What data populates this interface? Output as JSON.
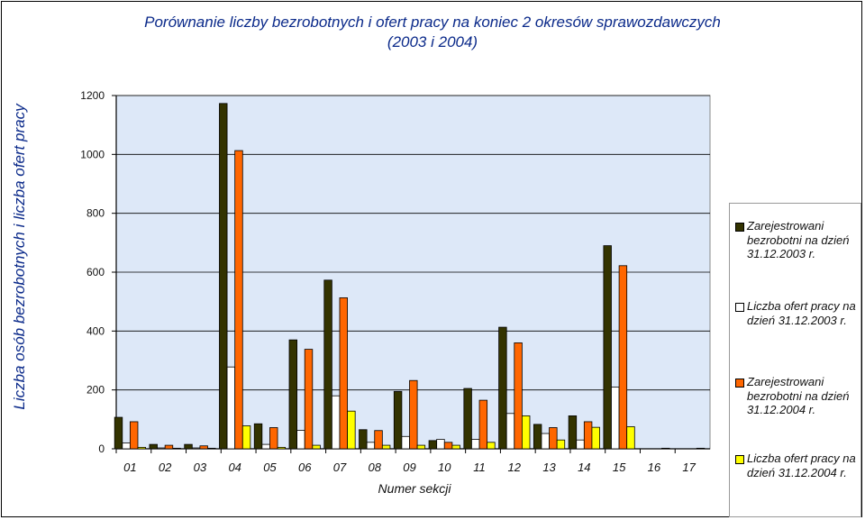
{
  "chart_data": {
    "type": "bar",
    "title": "Porównanie liczby bezrobotnych i ofert pracy na koniec 2 okresów sprawozdawczych",
    "subtitle": "(2003 i 2004)",
    "xlabel": "Numer sekcji",
    "ylabel": "Liczba osób bezrobotnych i liczba ofert pracy",
    "ylim": [
      0,
      1200
    ],
    "yticks": [
      "0",
      "200",
      "400",
      "600",
      "800",
      "1000",
      "1200"
    ],
    "grid": true,
    "legend_position": "right",
    "categories": [
      "01",
      "02",
      "03",
      "04",
      "05",
      "06",
      "07",
      "08",
      "09",
      "10",
      "11",
      "12",
      "13",
      "14",
      "15",
      "16",
      "17"
    ],
    "series": [
      {
        "name": "Zarejestrowani bezrobotni na dzień 31.12.2003 r.",
        "color": "#333300",
        "values": [
          107,
          15,
          15,
          1173,
          85,
          370,
          573,
          65,
          195,
          28,
          205,
          413,
          83,
          112,
          690,
          0,
          0
        ]
      },
      {
        "name": "Liczba ofert pracy na dzień 31.12.2003 r.",
        "color": "#ffffff",
        "values": [
          20,
          3,
          3,
          278,
          15,
          63,
          180,
          22,
          42,
          32,
          32,
          120,
          52,
          30,
          210,
          0,
          0
        ]
      },
      {
        "name": "Zarejestrowani bezrobotni na dzień 31.12.2004 r.",
        "color": "#ff6600",
        "values": [
          92,
          12,
          10,
          1013,
          72,
          338,
          513,
          62,
          232,
          22,
          165,
          360,
          72,
          92,
          622,
          0,
          0
        ]
      },
      {
        "name": "Liczba ofert pracy na dzień 31.12.2004 r.",
        "color": "#ffff00",
        "values": [
          5,
          2,
          2,
          78,
          5,
          12,
          128,
          12,
          12,
          12,
          22,
          112,
          30,
          73,
          75,
          2,
          2
        ]
      }
    ],
    "plot_background": "#dde8f8",
    "grid_color": "#000000"
  }
}
